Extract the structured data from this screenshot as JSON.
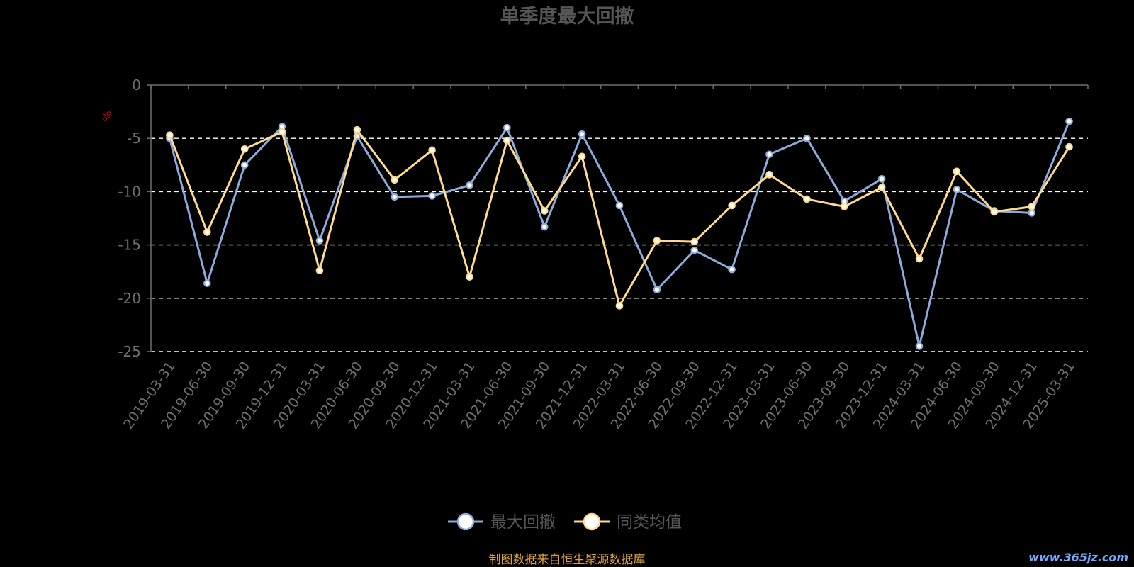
{
  "chart_data": {
    "type": "line",
    "title": "单季度最大回撤",
    "ylabel": "%",
    "ylim": [
      -25,
      0
    ],
    "yticks": [
      0,
      -5,
      -10,
      -15,
      -20,
      -25
    ],
    "grid": true,
    "legend_position": "bottom-center",
    "categories": [
      "2019-03-31",
      "2019-06-30",
      "2019-09-30",
      "2019-12-31",
      "2020-03-31",
      "2020-06-30",
      "2020-09-30",
      "2020-12-31",
      "2021-03-31",
      "2021-06-30",
      "2021-09-30",
      "2021-12-31",
      "2022-03-31",
      "2022-06-30",
      "2022-09-30",
      "2022-12-31",
      "2023-03-31",
      "2023-06-30",
      "2023-09-30",
      "2023-12-31",
      "2024-03-31",
      "2024-06-30",
      "2024-09-30",
      "2024-12-31",
      "2025-03-31"
    ],
    "series": [
      {
        "name": "最大回撤",
        "color": "#8eaadb",
        "values": [
          -5.0,
          -18.6,
          -7.5,
          -3.9,
          -14.6,
          -4.8,
          -10.5,
          -10.4,
          -9.4,
          -4.0,
          -13.3,
          -4.6,
          -11.3,
          -19.2,
          -15.5,
          -17.3,
          -6.5,
          -5.0,
          -10.9,
          -8.8,
          -24.5,
          -9.8,
          -11.8,
          -12.0,
          -3.4
        ]
      },
      {
        "name": "同类均值",
        "color": "#ffd98c",
        "values": [
          -4.7,
          -13.8,
          -6.0,
          -4.4,
          -17.4,
          -4.2,
          -8.9,
          -6.1,
          -18.0,
          -5.2,
          -11.8,
          -6.7,
          -20.7,
          -14.6,
          -14.7,
          -11.3,
          -8.4,
          -10.7,
          -11.4,
          -9.6,
          -16.3,
          -8.1,
          -11.9,
          -11.4,
          -5.8
        ]
      }
    ]
  },
  "footer": {
    "source_note": "制图数据来自恒生聚源数据库",
    "watermark": "www.365jz.com"
  },
  "colors": {
    "background": "#000000",
    "axis": "#6e6e6e",
    "tick_text": "#6e6e6e",
    "title": "#555555",
    "ylabel": "#cc0000",
    "grid": "#ffffff",
    "source_note": "#d9a13b"
  }
}
